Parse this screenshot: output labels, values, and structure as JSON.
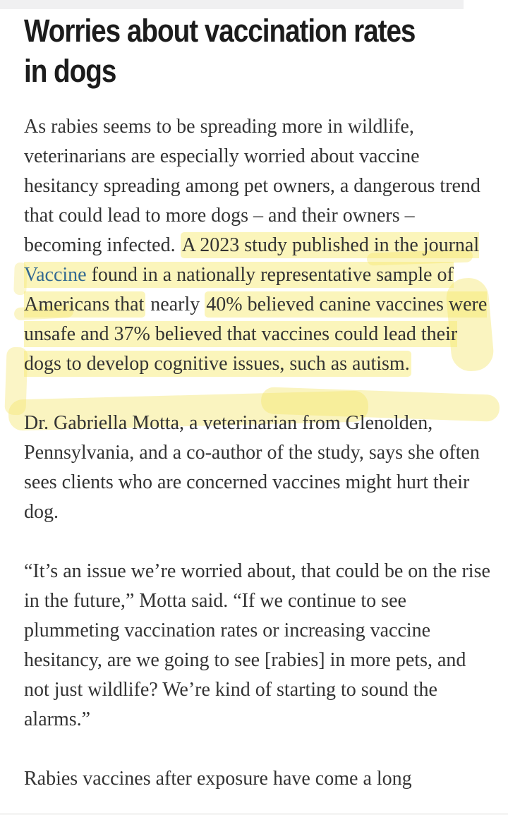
{
  "colors": {
    "link_blue": "#326891",
    "highlight_yellow": "#f6e869",
    "heading_text": "#1c1c1c",
    "body_text": "#333333",
    "top_bar_gray": "#f0f0f1"
  },
  "header": {
    "title_line1": "Worries about vaccination rates",
    "title_line2": "in dogs"
  },
  "article": {
    "p1": {
      "pre": "As rabies seems to be spreading more in wildlife, veterinarians are especially worried about vaccine hesitancy spreading among pet owners, a dangerous trend that could lead to more dogs – and their owners – becoming infected. ",
      "hl_before_link": "A 2023 study published in the journal ",
      "link_text": "Vaccine",
      "hl_after_link": " found in a nationally representative sample of Americans that",
      "mid": " nearly ",
      "hl2": "40% believed canine vaccines were unsafe and 37% believed that vaccines could lead their dogs to develop cognitive issues, such as autism."
    },
    "p2": "Dr. Gabriella Motta, a veterinarian from Glenolden, Pennsylvania, and a co-author of the study, says she often sees clients who are concerned vaccines might hurt their dog.",
    "p3": "“It’s an issue we’re worried about, that could be on the rise in the future,” Motta said. “If we continue to see plummeting vaccination rates or increasing vaccine hesitancy, are we going to see [rabies] in more pets, and not just wildlife? We’re kind of starting to sound the alarms.”",
    "p4": "Rabies vaccines after exposure have come a long"
  }
}
